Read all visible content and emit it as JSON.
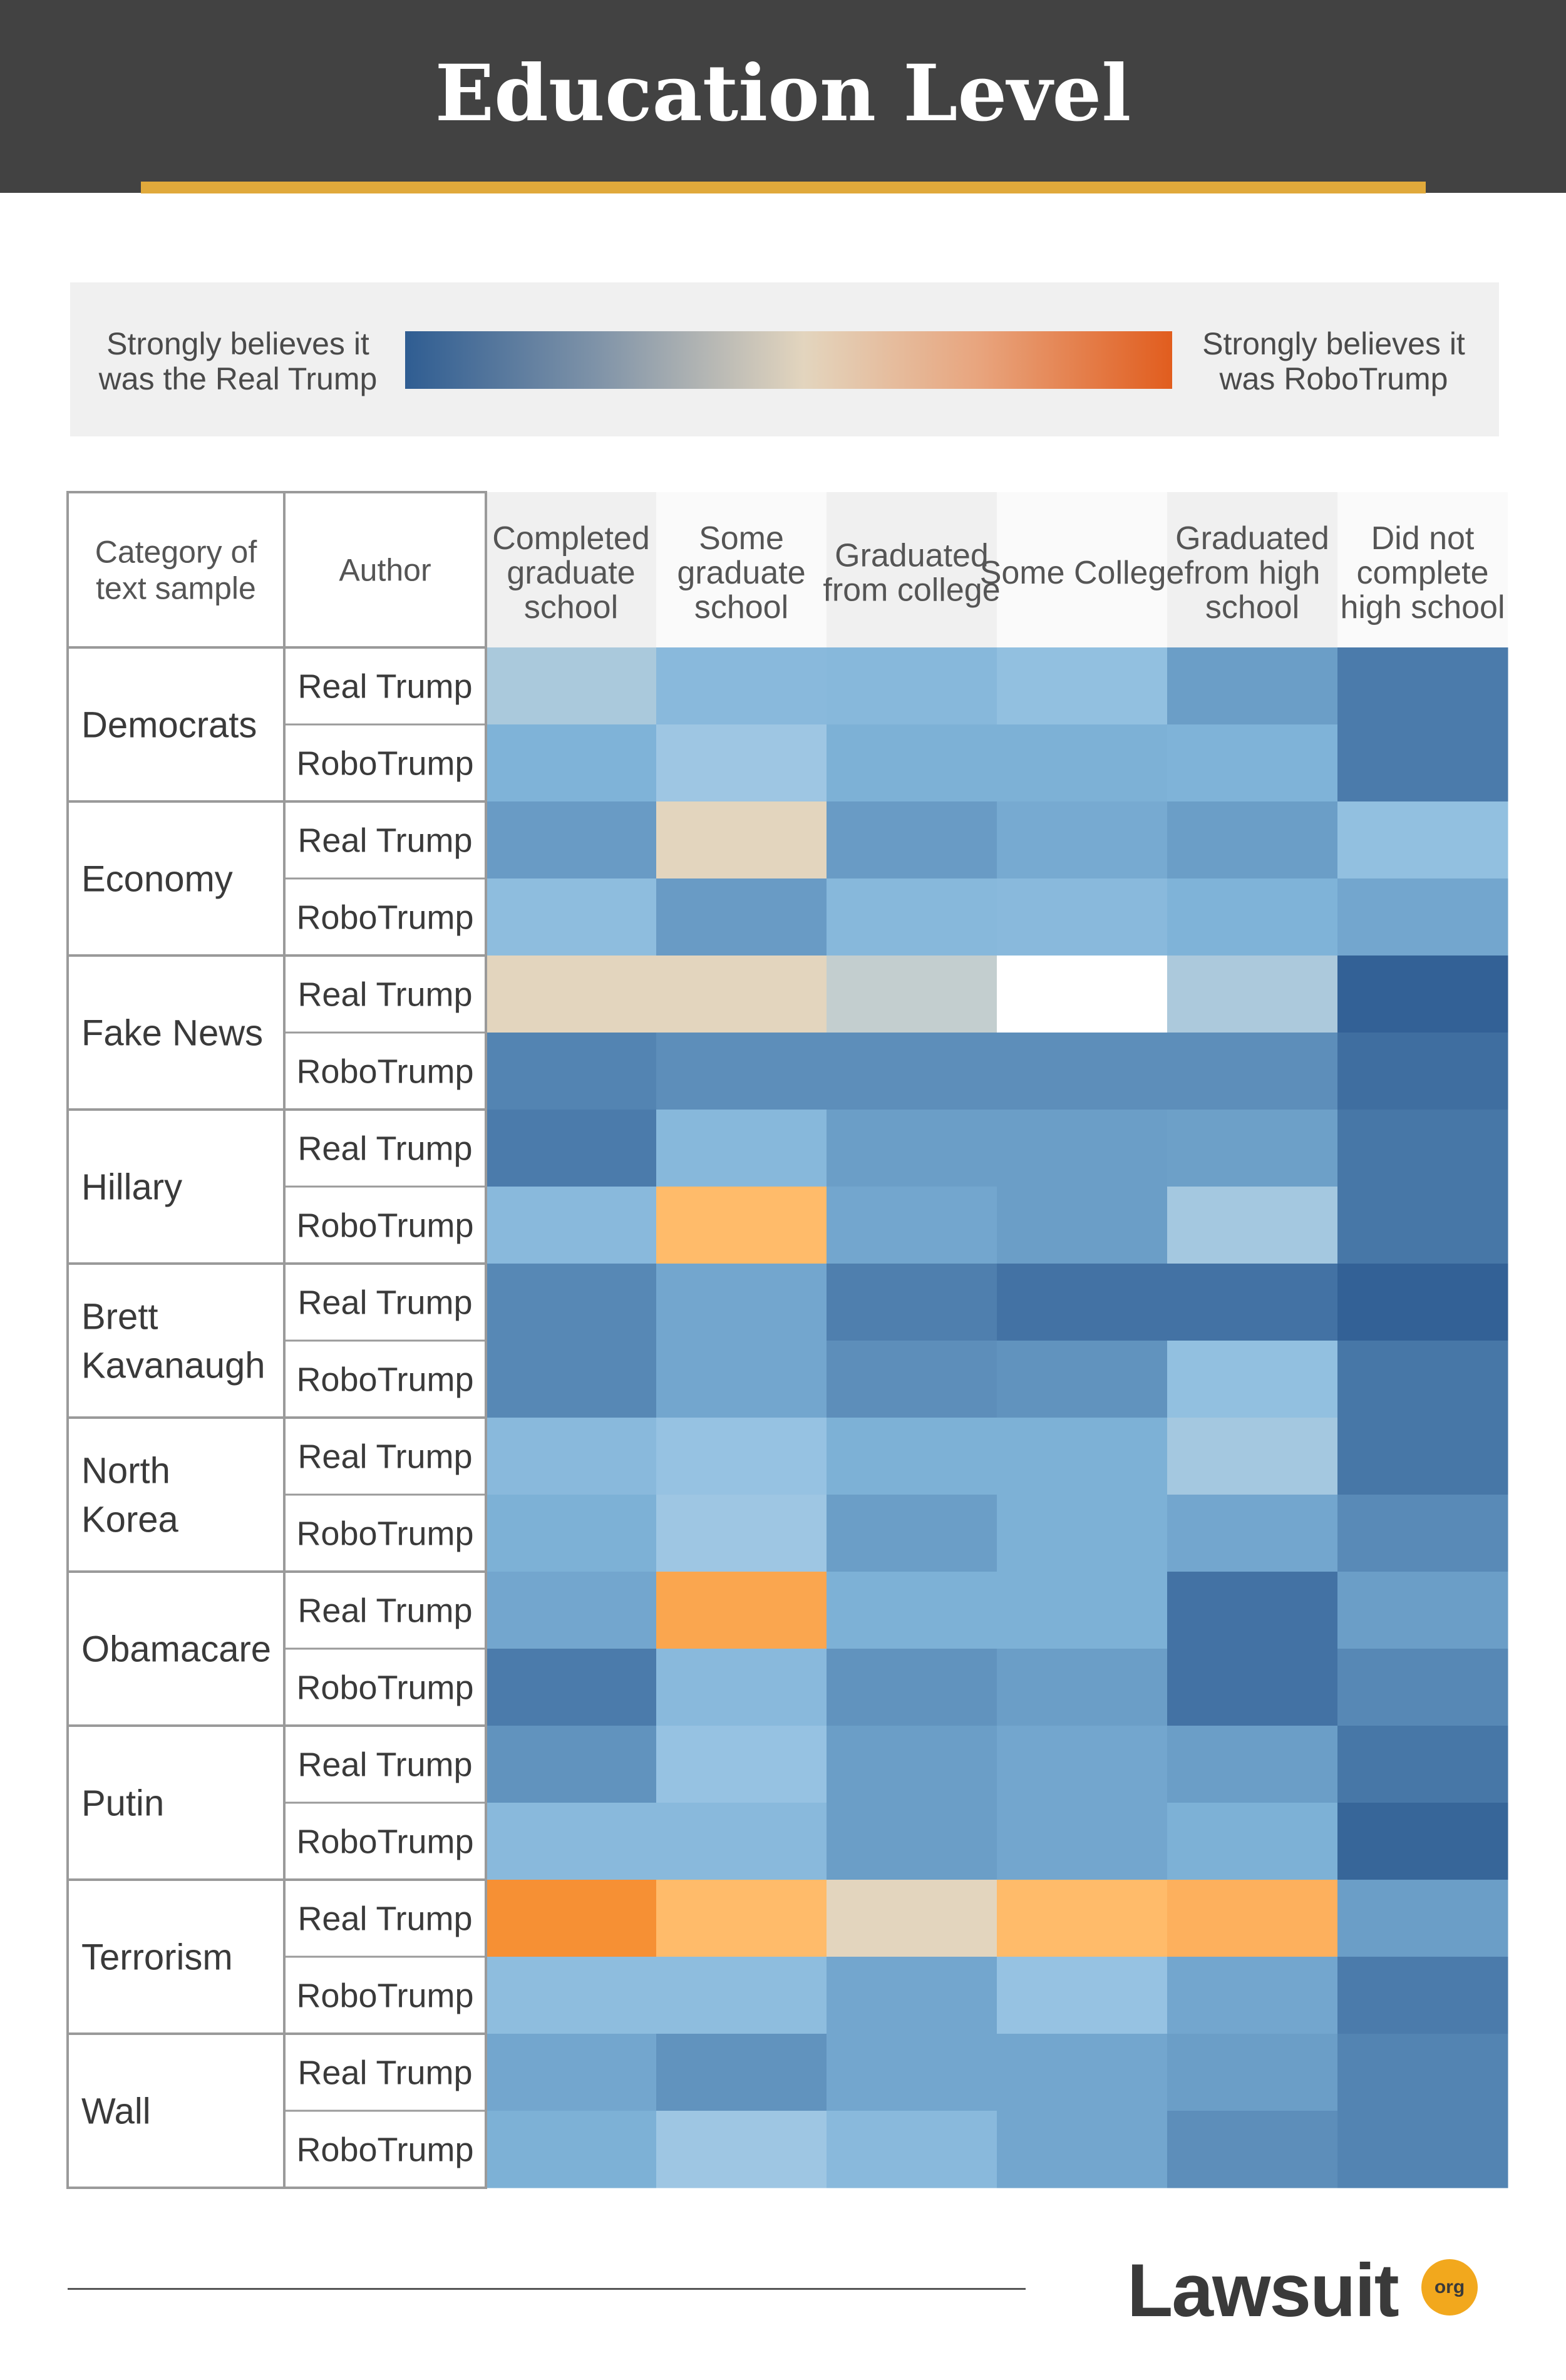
{
  "header": {
    "title": "Education Level"
  },
  "legend": {
    "left_label": "Strongly believes it was the Real Trump",
    "right_label": "Strongly believes it was RoboTrump"
  },
  "footer": {
    "logo_text": "Lawsuit",
    "logo_badge": "org"
  },
  "chart_data": {
    "type": "heatmap",
    "title": "Education Level",
    "corner_headers": [
      "Category of text sample",
      "Author"
    ],
    "columns": [
      "Completed graduate school",
      "Some graduate school",
      "Graduated from college",
      "Some College",
      "Graduated from high school",
      "Did not complete high school"
    ],
    "scale": {
      "min": -1,
      "max": 1,
      "min_label": "Strongly believes it was the Real Trump",
      "max_label": "Strongly believes it was RoboTrump"
    },
    "colors": {
      "real": "#2f5d92",
      "neutral": "#e3d5be",
      "robo": "#f28020"
    },
    "groups": [
      {
        "category": "Democrats",
        "rows": [
          {
            "author": "Real Trump",
            "values": [
              -0.36,
              -0.55,
              -0.56,
              -0.5,
              -0.7,
              -0.86
            ]
          },
          {
            "author": "RoboTrump",
            "values": [
              -0.6,
              -0.44,
              -0.61,
              -0.61,
              -0.6,
              -0.86
            ]
          }
        ]
      },
      {
        "category": "Economy",
        "rows": [
          {
            "author": "Real Trump",
            "values": [
              -0.71,
              0.0,
              -0.71,
              -0.64,
              -0.7,
              -0.5
            ]
          },
          {
            "author": "RoboTrump",
            "values": [
              -0.52,
              -0.71,
              -0.56,
              -0.55,
              -0.6,
              -0.66
            ]
          }
        ]
      },
      {
        "category": "Fake News",
        "rows": [
          {
            "author": "Real Trump",
            "values": [
              0.0,
              0.0,
              -0.2,
              null,
              -0.35,
              -0.98
            ]
          },
          {
            "author": "RoboTrump",
            "values": [
              -0.82,
              -0.77,
              -0.77,
              -0.77,
              -0.77,
              -0.92
            ]
          }
        ]
      },
      {
        "category": "Hillary",
        "rows": [
          {
            "author": "Real Trump",
            "values": [
              -0.86,
              -0.56,
              -0.7,
              -0.7,
              -0.69,
              -0.88
            ]
          },
          {
            "author": "RoboTrump",
            "values": [
              -0.55,
              0.45,
              -0.66,
              -0.7,
              -0.4,
              -0.88
            ]
          }
        ]
      },
      {
        "category": "Brett Kavanaugh",
        "rows": [
          {
            "author": "Real Trump",
            "values": [
              -0.8,
              -0.66,
              -0.84,
              -0.9,
              -0.9,
              -0.98
            ]
          },
          {
            "author": "RoboTrump",
            "values": [
              -0.8,
              -0.66,
              -0.77,
              -0.75,
              -0.5,
              -0.88
            ]
          }
        ]
      },
      {
        "category": "North Korea",
        "rows": [
          {
            "author": "Real Trump",
            "values": [
              -0.55,
              -0.48,
              -0.61,
              -0.61,
              -0.4,
              -0.88
            ]
          },
          {
            "author": "RoboTrump",
            "values": [
              -0.61,
              -0.44,
              -0.7,
              -0.61,
              -0.66,
              -0.79
            ]
          }
        ]
      },
      {
        "category": "Obamacare",
        "rows": [
          {
            "author": "Real Trump",
            "values": [
              -0.66,
              0.65,
              -0.61,
              -0.61,
              -0.9,
              -0.7
            ]
          },
          {
            "author": "RoboTrump",
            "values": [
              -0.86,
              -0.55,
              -0.75,
              -0.7,
              -0.9,
              -0.8
            ]
          }
        ]
      },
      {
        "category": "Putin",
        "rows": [
          {
            "author": "Real Trump",
            "values": [
              -0.75,
              -0.48,
              -0.7,
              -0.66,
              -0.7,
              -0.88
            ]
          },
          {
            "author": "RoboTrump",
            "values": [
              -0.55,
              -0.55,
              -0.7,
              -0.66,
              -0.61,
              -0.96
            ]
          }
        ]
      },
      {
        "category": "Terrorism",
        "rows": [
          {
            "author": "Real Trump",
            "values": [
              0.85,
              0.45,
              0.0,
              0.45,
              0.55,
              -0.7
            ]
          },
          {
            "author": "RoboTrump",
            "values": [
              -0.52,
              -0.52,
              -0.66,
              -0.48,
              -0.66,
              -0.86
            ]
          }
        ]
      },
      {
        "category": "Wall",
        "rows": [
          {
            "author": "Real Trump",
            "values": [
              -0.66,
              -0.75,
              -0.66,
              -0.66,
              -0.7,
              -0.82
            ]
          },
          {
            "author": "RoboTrump",
            "values": [
              -0.61,
              -0.44,
              -0.55,
              -0.66,
              -0.77,
              -0.82
            ]
          }
        ]
      }
    ]
  }
}
